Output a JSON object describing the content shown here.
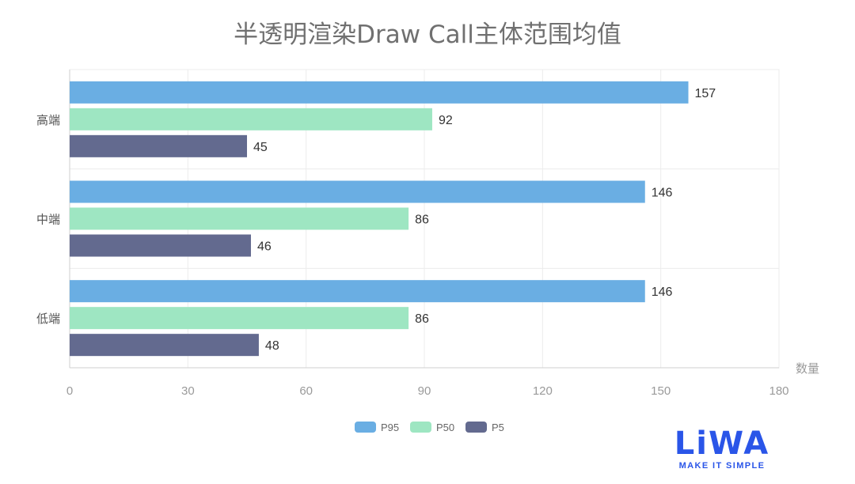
{
  "chart_data": {
    "type": "bar",
    "orientation": "horizontal",
    "title": "半透明渲染Draw Call主体范围均值",
    "xlabel": "数量",
    "ylabel": "",
    "xlim": [
      0,
      180
    ],
    "x_ticks": [
      "0",
      "30",
      "60",
      "90",
      "120",
      "150",
      "180"
    ],
    "categories": [
      "高端",
      "中端",
      "低端"
    ],
    "series": [
      {
        "name": "P95",
        "color": "#6aaee3",
        "values": [
          157,
          146,
          146
        ]
      },
      {
        "name": "P50",
        "color": "#9ee6c2",
        "values": [
          92,
          86,
          86
        ]
      },
      {
        "name": "P5",
        "color": "#636a8f",
        "values": [
          45,
          46,
          48
        ]
      }
    ],
    "grid": true,
    "legend_position": "bottom-center"
  },
  "logo": {
    "word": "LiWA",
    "tagline": "MAKE IT SIMPLE",
    "color": "#2a55e8"
  }
}
